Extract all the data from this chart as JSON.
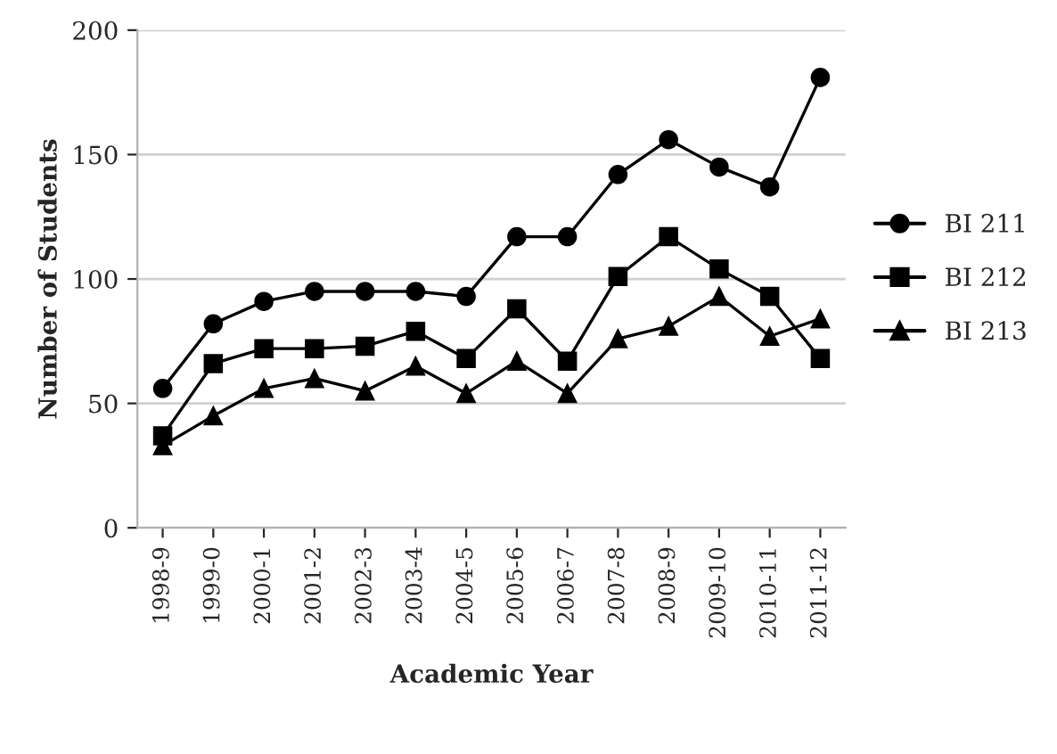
{
  "chart_data": {
    "type": "line",
    "xlabel": "Academic Year",
    "ylabel": "Number of Students",
    "categories": [
      "1998-9",
      "1999-0",
      "2000-1",
      "2001-2",
      "2002-3",
      "2003-4",
      "2004-5",
      "2005-6",
      "2006-7",
      "2007-8",
      "2008-9",
      "2009-10",
      "2010-11",
      "2011-12"
    ],
    "series": [
      {
        "name": "BI 211",
        "color": "#000000",
        "marker": "circle",
        "values": [
          56,
          82,
          91,
          95,
          95,
          95,
          93,
          117,
          117,
          142,
          156,
          145,
          137,
          181
        ]
      },
      {
        "name": "BI 212",
        "color": "#000000",
        "marker": "square",
        "values": [
          37,
          66,
          72,
          72,
          73,
          79,
          68,
          88,
          67,
          101,
          117,
          104,
          93,
          68
        ]
      },
      {
        "name": "BI 213",
        "color": "#000000",
        "marker": "triangle",
        "values": [
          33,
          45,
          56,
          60,
          55,
          65,
          54,
          67,
          54,
          76,
          81,
          93,
          77,
          84
        ]
      }
    ],
    "ylim": [
      0,
      200
    ],
    "yticks": [
      0,
      50,
      100,
      150,
      200
    ],
    "grid": "y",
    "legend": "right",
    "line_style": "solid"
  }
}
